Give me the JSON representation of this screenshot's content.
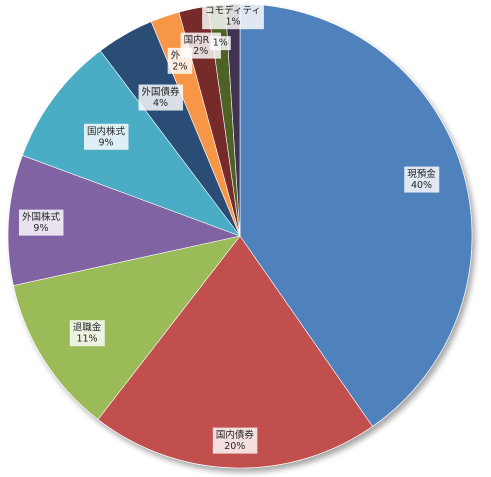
{
  "chart_data": {
    "type": "pie",
    "slices": [
      {
        "label": "現預金",
        "value": 40,
        "pct_label": "40%",
        "color": "#4F81BD"
      },
      {
        "label": "国内債券",
        "value": 20,
        "pct_label": "20%",
        "color": "#C0504D"
      },
      {
        "label": "退職金",
        "value": 11,
        "pct_label": "11%",
        "color": "#9BBB59"
      },
      {
        "label": "外国株式",
        "value": 9,
        "pct_label": "9%",
        "color": "#8064A2"
      },
      {
        "label": "国内株式",
        "value": 9,
        "pct_label": "9%",
        "color": "#4BACC6"
      },
      {
        "label": "外国債券",
        "value": 4,
        "pct_label": "4%",
        "color": "#2C4D75"
      },
      {
        "label": "外...",
        "value": 2,
        "pct_label": "2%",
        "color": "#F79646"
      },
      {
        "label": "国内R...",
        "value": 2,
        "pct_label": "2%",
        "color": "#772C2A"
      },
      {
        "label": "",
        "value": 1.2,
        "pct_label": "1%",
        "color": "#4F6228"
      },
      {
        "label": "コモディティ",
        "value": 1,
        "pct_label": "1%",
        "color": "#403151"
      }
    ],
    "start_angle_deg": 0,
    "direction": "clockwise",
    "data_labels": "inside"
  }
}
